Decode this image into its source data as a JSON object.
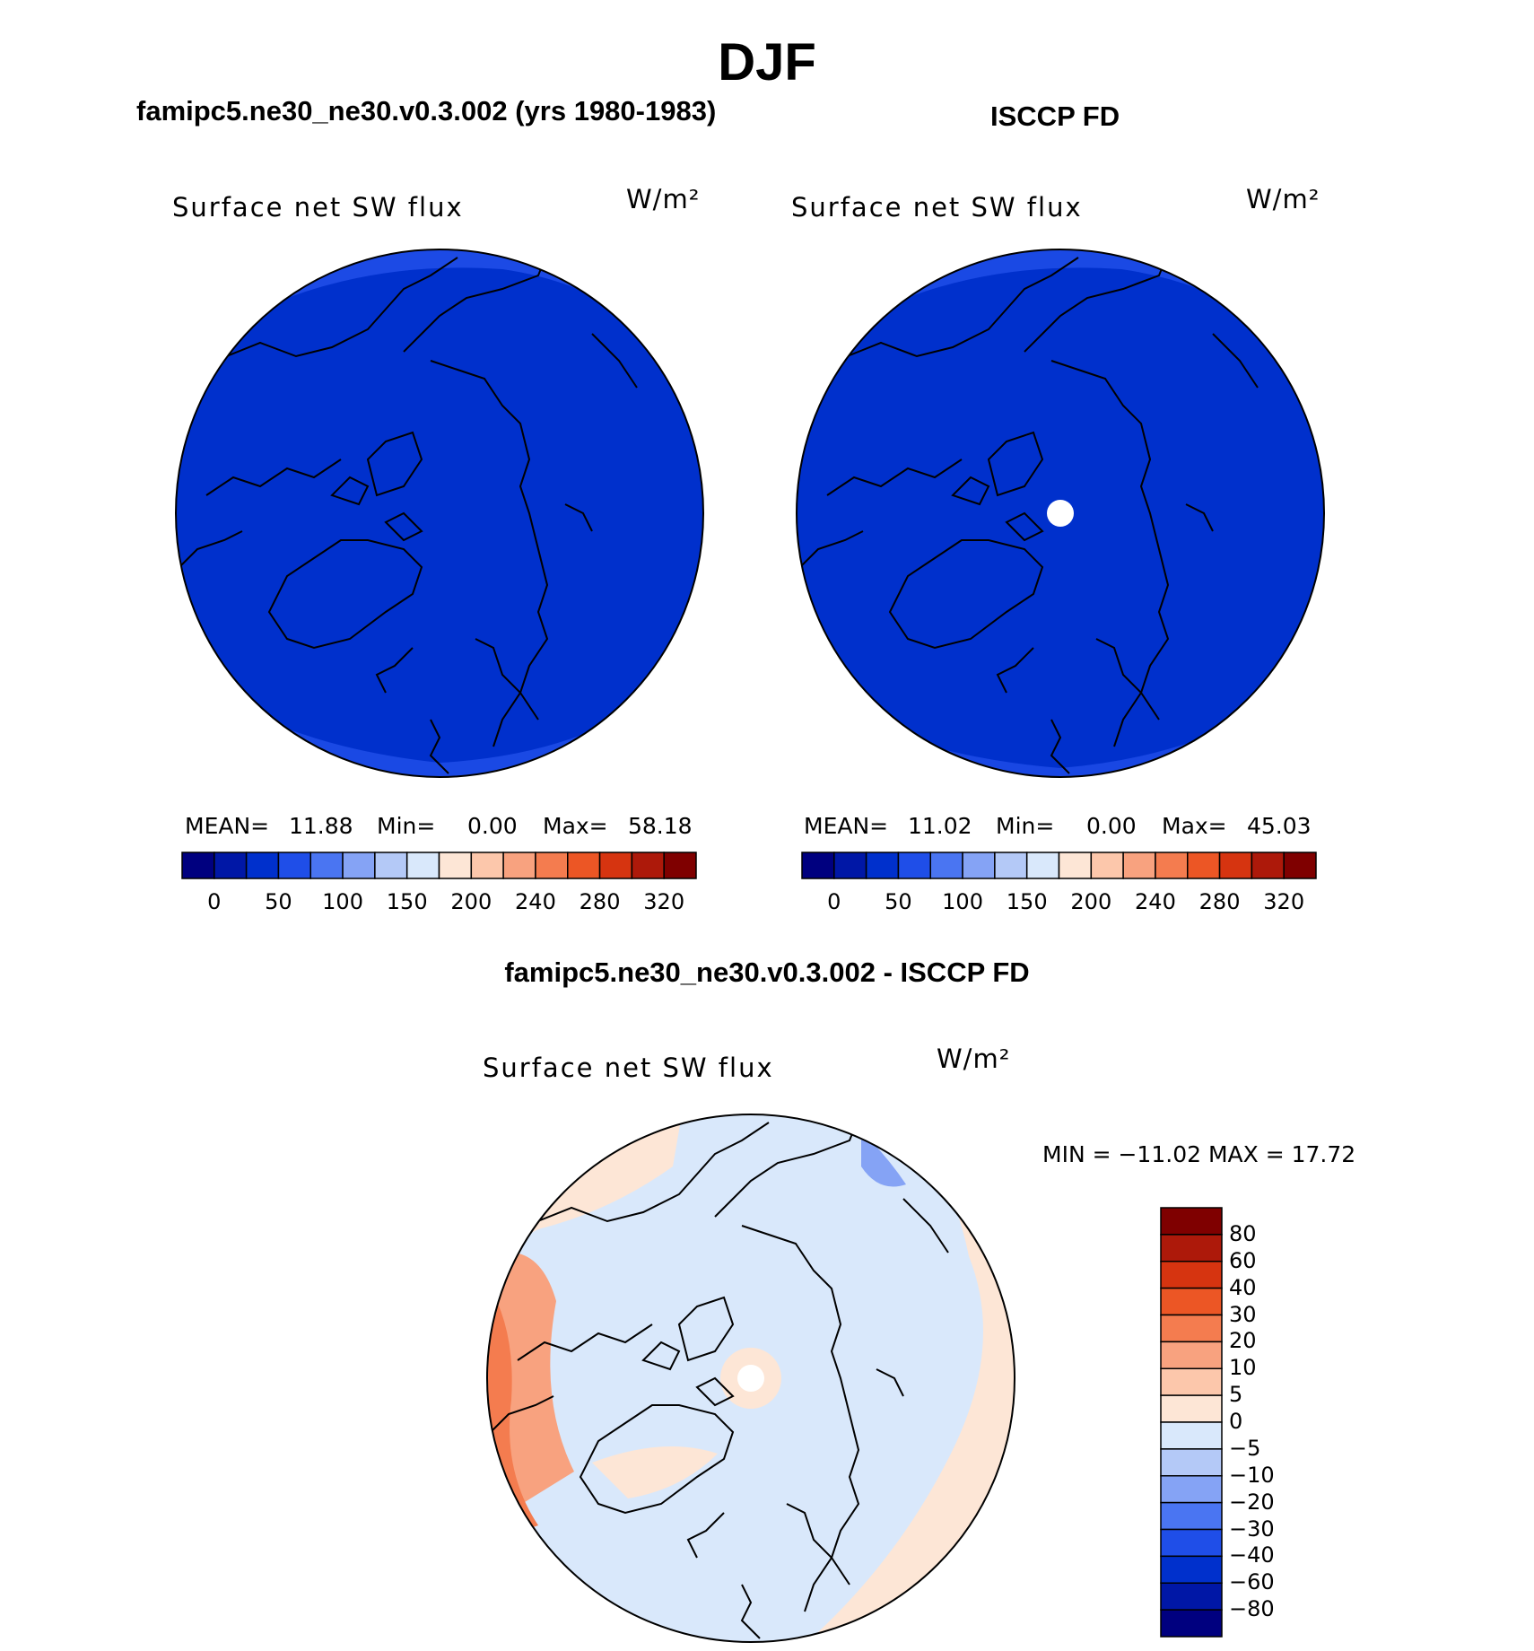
{
  "figure": {
    "title": "DJF",
    "panel_left": {
      "title": "famipc5.ne30_ne30.v0.3.002 (yrs 1980-1983)",
      "variable": "Surface net SW flux",
      "units": "W/m²",
      "mean_label": "MEAN=",
      "mean": "11.88",
      "min_label": "Min=",
      "min": "0.00",
      "max_label": "Max=",
      "max": "58.18"
    },
    "panel_right": {
      "title": "ISCCP FD",
      "variable": "Surface net SW flux",
      "units": "W/m²",
      "mean_label": "MEAN=",
      "mean": "11.02",
      "min_label": "Min=",
      "min": "0.00",
      "max_label": "Max=",
      "max": "45.03"
    },
    "panel_diff": {
      "title": "famipc5.ne30_ne30.v0.3.002 - ISCCP FD",
      "variable": "Surface net SW flux",
      "units": "W/m²",
      "minmax": "MIN = −11.02 MAX =   17.72"
    }
  },
  "chart_data": [
    {
      "type": "heatmap",
      "projection": "north-polar-stereographic",
      "title": "famipc5.ne30_ne30.v0.3.002 (yrs 1980-1983)",
      "variable": "Surface net SW flux",
      "units": "W/m²",
      "mean": 11.88,
      "min": 0.0,
      "max": 58.18,
      "colorbar": {
        "orientation": "horizontal",
        "levels": [
          0,
          25,
          50,
          75,
          100,
          125,
          150,
          175,
          200,
          220,
          240,
          260,
          280,
          300,
          320
        ],
        "tick_labels": [
          "0",
          "50",
          "100",
          "150",
          "200",
          "240",
          "280",
          "320"
        ],
        "colors": [
          "#00007f",
          "#0017a6",
          "#0030cc",
          "#1f4ee8",
          "#4a75f2",
          "#85a3f5",
          "#b4c9f7",
          "#d9e8fb",
          "#fde6d6",
          "#fcc7ab",
          "#f8a27f",
          "#f47c4f",
          "#ec5625",
          "#d63410",
          "#ad190a",
          "#7f0000"
        ]
      }
    },
    {
      "type": "heatmap",
      "projection": "north-polar-stereographic",
      "title": "ISCCP FD",
      "variable": "Surface net SW flux",
      "units": "W/m²",
      "mean": 11.02,
      "min": 0.0,
      "max": 45.03,
      "colorbar": {
        "orientation": "horizontal",
        "levels": [
          0,
          25,
          50,
          75,
          100,
          125,
          150,
          175,
          200,
          220,
          240,
          260,
          280,
          300,
          320
        ],
        "tick_labels": [
          "0",
          "50",
          "100",
          "150",
          "200",
          "240",
          "280",
          "320"
        ],
        "colors": [
          "#00007f",
          "#0017a6",
          "#0030cc",
          "#1f4ee8",
          "#4a75f2",
          "#85a3f5",
          "#b4c9f7",
          "#d9e8fb",
          "#fde6d6",
          "#fcc7ab",
          "#f8a27f",
          "#f47c4f",
          "#ec5625",
          "#d63410",
          "#ad190a",
          "#7f0000"
        ]
      }
    },
    {
      "type": "heatmap",
      "projection": "north-polar-stereographic",
      "title": "famipc5.ne30_ne30.v0.3.002 - ISCCP FD",
      "variable": "Surface net SW flux",
      "units": "W/m²",
      "min": -11.02,
      "max": 17.72,
      "colorbar": {
        "orientation": "vertical",
        "levels": [
          -80,
          -60,
          -40,
          -30,
          -20,
          -10,
          -5,
          0,
          5,
          10,
          20,
          30,
          40,
          60,
          80
        ],
        "tick_labels": [
          "80",
          "60",
          "40",
          "30",
          "20",
          "10",
          "5",
          "0",
          "−5",
          "−10",
          "−20",
          "−30",
          "−40",
          "−60",
          "−80"
        ],
        "colors_top_to_bottom": [
          "#7f0000",
          "#ad190a",
          "#d63410",
          "#ec5625",
          "#f47c4f",
          "#f8a27f",
          "#fcc7ab",
          "#fde6d6",
          "#d9e8fb",
          "#b4c9f7",
          "#85a3f5",
          "#4a75f2",
          "#1f4ee8",
          "#0030cc",
          "#0017a6",
          "#00007f"
        ]
      }
    }
  ]
}
